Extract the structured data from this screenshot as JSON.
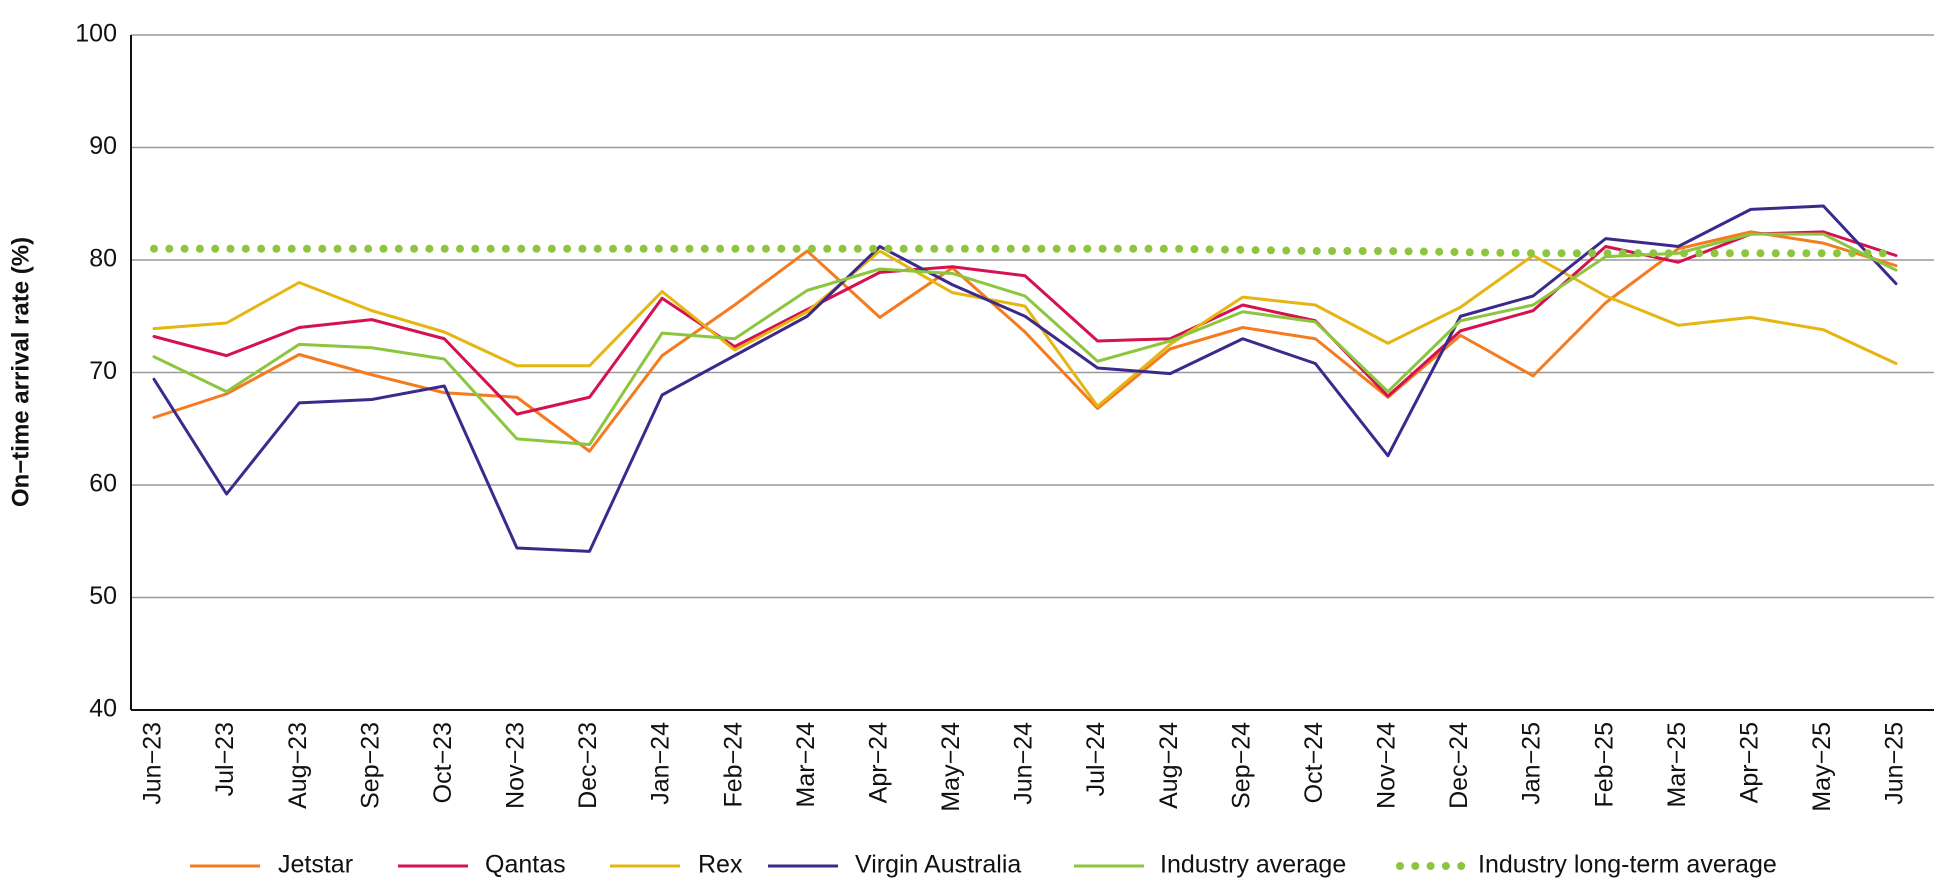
{
  "chart_data": {
    "type": "line",
    "y_label": "On−time arrival rate (%)",
    "categories": [
      "Jun−23",
      "Jul−23",
      "Aug−23",
      "Sep−23",
      "Oct−23",
      "Nov−23",
      "Dec−23",
      "Jan−24",
      "Feb−24",
      "Mar−24",
      "Apr−24",
      "May−24",
      "Jun−24",
      "Jul−24",
      "Aug−24",
      "Sep−24",
      "Oct−24",
      "Nov−24",
      "Dec−24",
      "Jan−25",
      "Feb−25",
      "Mar−25",
      "Apr−25",
      "May−25",
      "Jun−25"
    ],
    "series": [
      {
        "name": "Jetstar",
        "color": "#f47b20",
        "style": "solid",
        "values": [
          66,
          68.1,
          71.6,
          69.8,
          68.2,
          67.8,
          63,
          71.5,
          76,
          80.8,
          74.9,
          79.3,
          73.6,
          66.8,
          72.1,
          74,
          73,
          67.8,
          73.3,
          69.7,
          76.2,
          81,
          82.5,
          81.5,
          79.5
        ]
      },
      {
        "name": "Qantas",
        "color": "#d5114f",
        "style": "solid",
        "values": [
          73.2,
          71.5,
          74,
          74.7,
          73,
          66.3,
          67.8,
          76.6,
          72.3,
          75.6,
          78.9,
          79.4,
          78.6,
          72.8,
          73,
          76,
          74.6,
          67.9,
          73.7,
          75.5,
          81.2,
          79.8,
          82.3,
          82.5,
          80.4
        ]
      },
      {
        "name": "Rex",
        "color": "#e5b612",
        "style": "solid",
        "values": [
          73.9,
          74.4,
          78,
          75.5,
          73.6,
          70.6,
          70.6,
          77.2,
          72,
          75.4,
          80.8,
          77.1,
          75.9,
          67,
          72.5,
          76.7,
          76,
          72.6,
          75.8,
          80.4,
          76.8,
          74.2,
          74.9,
          73.8,
          70.8
        ]
      },
      {
        "name": "Virgin Australia",
        "color": "#3b2a8c",
        "style": "solid",
        "values": [
          69.4,
          59.2,
          67.3,
          67.6,
          68.8,
          54.4,
          54.1,
          68,
          71.5,
          75,
          81.2,
          77.8,
          75,
          70.4,
          69.9,
          73,
          70.8,
          62.6,
          75,
          76.8,
          81.9,
          81.2,
          84.5,
          84.8,
          77.9
        ]
      },
      {
        "name": "Industry average",
        "color": "#8cc63f",
        "style": "solid",
        "values": [
          71.4,
          68.3,
          72.5,
          72.2,
          71.2,
          64.1,
          63.6,
          73.5,
          73,
          77.3,
          79.2,
          78.8,
          76.8,
          71,
          72.8,
          75.4,
          74.5,
          68.3,
          74.6,
          76,
          80.3,
          80.6,
          82.3,
          82.3,
          79.1
        ]
      },
      {
        "name": "Industry long-term average",
        "color": "#8cc63f",
        "style": "dotted",
        "values": [
          81,
          81,
          81,
          81,
          81,
          81,
          81,
          81,
          81,
          81,
          81,
          81,
          81,
          81,
          81,
          80.9,
          80.8,
          80.8,
          80.7,
          80.6,
          80.6,
          80.6,
          80.6,
          80.6,
          80.6
        ]
      }
    ],
    "ylim": [
      40,
      100
    ],
    "yticks": [
      40,
      50,
      60,
      70,
      80,
      90,
      100
    ],
    "grid": true,
    "legend": "bottom"
  }
}
